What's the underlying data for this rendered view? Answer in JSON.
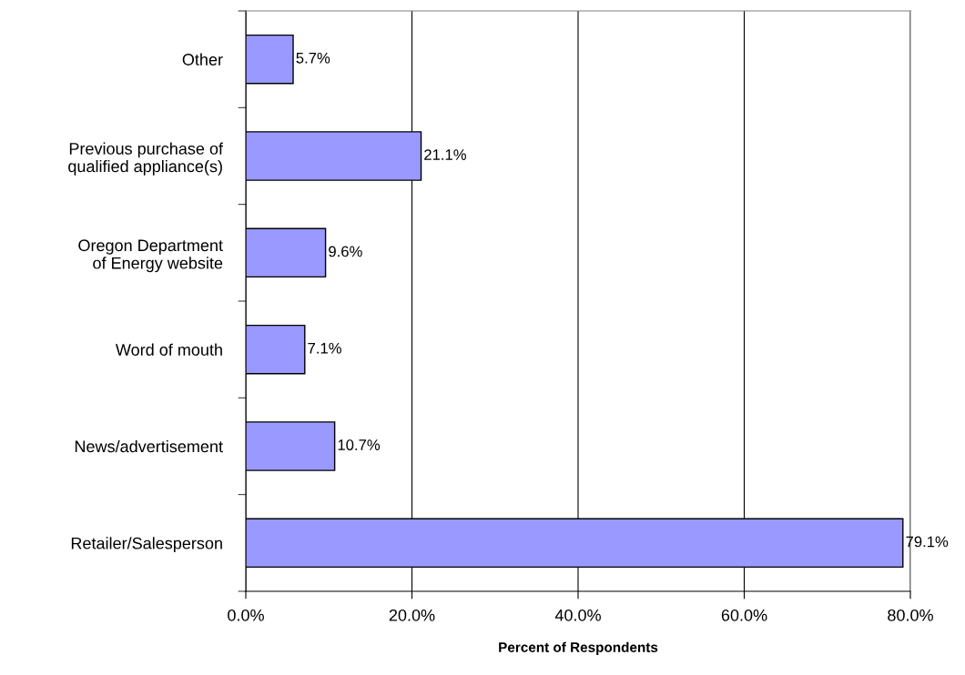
{
  "chart_data": {
    "type": "bar",
    "orientation": "horizontal",
    "xlabel": "Percent of Respondents",
    "categories": [
      "Other",
      "Previous purchase of\nqualified appliance(s)",
      "Oregon Department\nof Energy website",
      "Word of mouth",
      "News/advertisement",
      "Retailer/Salesperson"
    ],
    "values": [
      5.7,
      21.1,
      9.6,
      7.1,
      10.7,
      79.1
    ],
    "value_labels": [
      "5.7%",
      "21.1%",
      "9.6%",
      "7.1%",
      "10.7%",
      "79.1%"
    ],
    "color": "#9999ff",
    "xlim": [
      0,
      80
    ],
    "xticks": [
      {
        "value": 0,
        "label": "0.0%"
      },
      {
        "value": 20,
        "label": "20.0%"
      },
      {
        "value": 40,
        "label": "40.0%"
      },
      {
        "value": 60,
        "label": "60.0%"
      },
      {
        "value": 80,
        "label": "80.0%"
      }
    ],
    "grid": "x",
    "legend": false
  }
}
